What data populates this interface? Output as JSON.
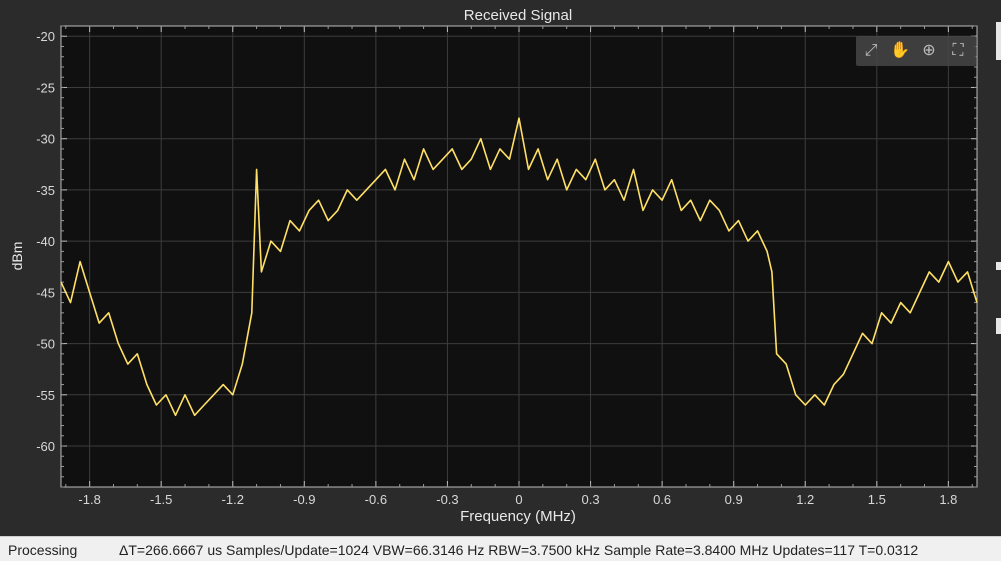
{
  "chart_data": {
    "type": "line",
    "title": "Received Signal",
    "xlabel": "Frequency (MHz)",
    "ylabel": "dBm",
    "xlim": [
      -1.92,
      1.92
    ],
    "ylim": [
      -64,
      -19
    ],
    "xticks": [
      -1.8,
      -1.5,
      -1.2,
      -0.9,
      -0.6,
      -0.3,
      0,
      0.3,
      0.6,
      0.9,
      1.2,
      1.5,
      1.8
    ],
    "yticks": [
      -20,
      -25,
      -30,
      -35,
      -40,
      -45,
      -50,
      -55,
      -60
    ],
    "grid": true,
    "series": [
      {
        "color": "#ffe066",
        "x": [
          -1.92,
          -1.88,
          -1.84,
          -1.8,
          -1.76,
          -1.72,
          -1.68,
          -1.64,
          -1.6,
          -1.56,
          -1.52,
          -1.48,
          -1.44,
          -1.4,
          -1.36,
          -1.32,
          -1.28,
          -1.24,
          -1.2,
          -1.16,
          -1.12,
          -1.1,
          -1.08,
          -1.04,
          -1.0,
          -0.96,
          -0.92,
          -0.88,
          -0.84,
          -0.8,
          -0.76,
          -0.72,
          -0.68,
          -0.64,
          -0.6,
          -0.56,
          -0.52,
          -0.48,
          -0.44,
          -0.4,
          -0.36,
          -0.32,
          -0.28,
          -0.24,
          -0.2,
          -0.16,
          -0.12,
          -0.08,
          -0.04,
          0.0,
          0.04,
          0.08,
          0.12,
          0.16,
          0.2,
          0.24,
          0.28,
          0.32,
          0.36,
          0.4,
          0.44,
          0.48,
          0.52,
          0.56,
          0.6,
          0.64,
          0.68,
          0.72,
          0.76,
          0.8,
          0.84,
          0.88,
          0.92,
          0.96,
          1.0,
          1.04,
          1.06,
          1.08,
          1.12,
          1.16,
          1.2,
          1.24,
          1.28,
          1.32,
          1.36,
          1.4,
          1.44,
          1.48,
          1.52,
          1.56,
          1.6,
          1.64,
          1.68,
          1.72,
          1.76,
          1.8,
          1.84,
          1.88,
          1.92
        ],
        "y": [
          -44,
          -46,
          -42,
          -45,
          -48,
          -47,
          -50,
          -52,
          -51,
          -54,
          -56,
          -55,
          -57,
          -55,
          -57,
          -56,
          -55,
          -54,
          -55,
          -52,
          -47,
          -33,
          -43,
          -40,
          -41,
          -38,
          -39,
          -37,
          -36,
          -38,
          -37,
          -35,
          -36,
          -35,
          -34,
          -33,
          -35,
          -32,
          -34,
          -31,
          -33,
          -32,
          -31,
          -33,
          -32,
          -30,
          -33,
          -31,
          -32,
          -28,
          -33,
          -31,
          -34,
          -32,
          -35,
          -33,
          -34,
          -32,
          -35,
          -34,
          -36,
          -33,
          -37,
          -35,
          -36,
          -34,
          -37,
          -36,
          -38,
          -36,
          -37,
          -39,
          -38,
          -40,
          -39,
          -41,
          -43,
          -51,
          -52,
          -55,
          -56,
          -55,
          -56,
          -54,
          -53,
          -51,
          -49,
          -50,
          -47,
          -48,
          -46,
          -47,
          -45,
          -43,
          -44,
          -42,
          -44,
          -43,
          -46
        ]
      }
    ]
  },
  "toolbar": {
    "icons": [
      "pan-icon",
      "hand-icon",
      "zoom-in-icon",
      "fit-icon"
    ]
  },
  "status": {
    "state": "Processing",
    "details": "ΔT=266.6667 us  Samples/Update=1024  VBW=66.3146 Hz  RBW=3.7500 kHz  Sample Rate=3.8400 MHz  Updates=117  T=0.0312"
  }
}
